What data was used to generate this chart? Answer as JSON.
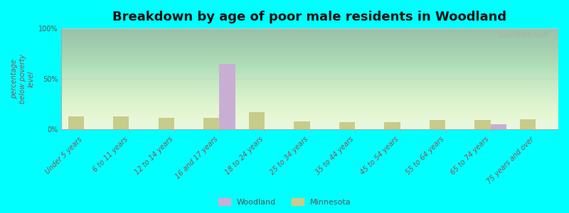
{
  "title": "Breakdown by age of poor male residents in Woodland",
  "ylabel": "percentage\nbelow poverty\nlevel",
  "categories": [
    "Under 5 years",
    "6 to 11 years",
    "12 to 14 years",
    "16 and 17 years",
    "18 to 24 years",
    "25 to 34 years",
    "35 to 44 years",
    "45 to 54 years",
    "55 to 64 years",
    "65 to 74 years",
    "75 years and over"
  ],
  "woodland_values": [
    0,
    0,
    0,
    65,
    0,
    0,
    0,
    0,
    0,
    5,
    0
  ],
  "minnesota_values": [
    13,
    13,
    11,
    11,
    17,
    8,
    7,
    7,
    9,
    9,
    10
  ],
  "woodland_color": "#c9aed4",
  "minnesota_color": "#c8cc8a",
  "background_top": "#e8f5e8",
  "background_bottom": "#f5faf0",
  "plot_bg": "#e0f5e0",
  "outer_bg": "#00ffff",
  "ylim": [
    0,
    100
  ],
  "yticks": [
    0,
    50,
    100
  ],
  "ytick_labels": [
    "0%",
    "50%",
    "100%"
  ],
  "bar_width": 0.35,
  "title_fontsize": 13,
  "label_fontsize": 7,
  "tick_fontsize": 7,
  "watermark": "City-Data.com"
}
